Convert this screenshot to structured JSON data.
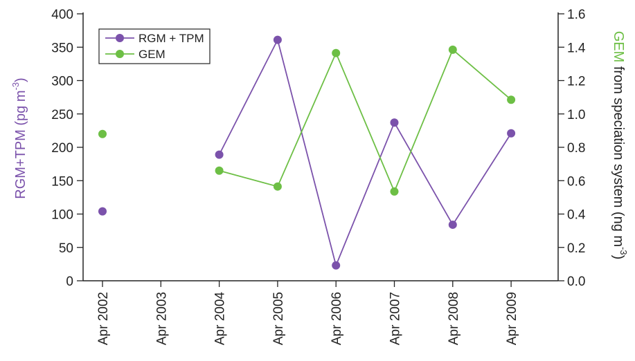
{
  "chart_data": {
    "type": "line",
    "categories": [
      "Apr 2002",
      "Apr 2003",
      "Apr 2004",
      "Apr 2005",
      "Apr 2006",
      "Apr 2007",
      "Apr 2008",
      "Apr 2009"
    ],
    "y_left": {
      "label_main": "RGM+TPM (pg m",
      "label_sup": "-3",
      "label_close": ")",
      "range": [
        0,
        400
      ],
      "ticks": [
        0,
        50,
        100,
        150,
        200,
        250,
        300,
        350,
        400
      ],
      "tick_labels": [
        "0",
        "50",
        "100",
        "150",
        "200",
        "250",
        "300",
        "350",
        "400"
      ]
    },
    "y_right": {
      "label_colored": "GEM",
      "label_rest": " from speciation system (ng m",
      "label_sup": "-3",
      "label_close": ")",
      "range": [
        0,
        1.6
      ],
      "ticks": [
        0,
        0.2,
        0.4,
        0.6,
        0.8,
        1.0,
        1.2,
        1.4,
        1.6
      ],
      "tick_labels": [
        "0.0",
        "0.2",
        "0.4",
        "0.6",
        "0.8",
        "1.0",
        "1.2",
        "1.4",
        "1.6"
      ]
    },
    "series": [
      {
        "name": "RGM + TPM",
        "axis": "left",
        "color": "#7b52ab",
        "values": [
          104,
          null,
          189,
          361,
          23,
          237,
          84,
          221
        ],
        "segments": [
          [
            2,
            7
          ]
        ]
      },
      {
        "name": "GEM",
        "axis": "right",
        "color": "#6dbf45",
        "values": [
          0.88,
          null,
          0.66,
          0.565,
          1.365,
          0.535,
          1.385,
          1.085
        ],
        "segments": [
          [
            2,
            7
          ]
        ]
      }
    ],
    "legend": {
      "position": "top-left"
    },
    "grid": false
  }
}
